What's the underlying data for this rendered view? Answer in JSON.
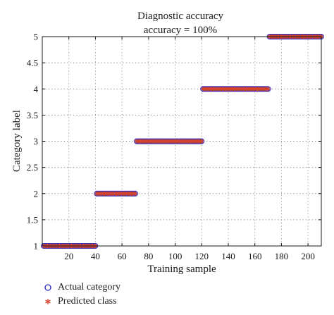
{
  "chart_data": {
    "type": "scatter",
    "title": "Diagnostic accuracy",
    "subtitle": "accuracy = 100%",
    "xlabel": "Training sample",
    "ylabel": "Category label",
    "xlim": [
      0,
      210
    ],
    "ylim": [
      1,
      5
    ],
    "xticks": [
      20,
      40,
      60,
      80,
      100,
      120,
      140,
      160,
      180,
      200
    ],
    "yticks": [
      1,
      1.5,
      2,
      2.5,
      3,
      3.5,
      4,
      4.5,
      5
    ],
    "xtick_labels": [
      "20",
      "40",
      "60",
      "80",
      "100",
      "120",
      "140",
      "160",
      "180",
      "200"
    ],
    "ytick_labels": [
      "1",
      "1.5",
      "2",
      "2.5",
      "3",
      "3.5",
      "4",
      "4.5",
      "5"
    ],
    "grid": true,
    "legend_position": "bottom-left, outside plot",
    "groups": [
      {
        "category": 1,
        "x_start": 1,
        "x_end": 40
      },
      {
        "category": 2,
        "x_start": 41,
        "x_end": 70
      },
      {
        "category": 3,
        "x_start": 71,
        "x_end": 120
      },
      {
        "category": 4,
        "x_start": 121,
        "x_end": 170
      },
      {
        "category": 5,
        "x_start": 171,
        "x_end": 210
      }
    ],
    "series": [
      {
        "name": "Actual category",
        "marker": "circle",
        "color": "#2b2bc4"
      },
      {
        "name": "Predicted class",
        "marker": "asterisk",
        "color": "#d4452b"
      }
    ]
  }
}
